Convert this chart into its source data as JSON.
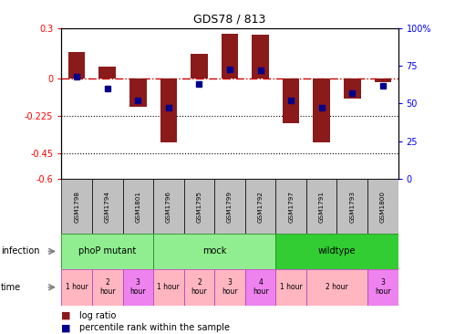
{
  "title": "GDS78 / 813",
  "samples": [
    "GSM1798",
    "GSM1794",
    "GSM1801",
    "GSM1796",
    "GSM1795",
    "GSM1799",
    "GSM1792",
    "GSM1797",
    "GSM1791",
    "GSM1793",
    "GSM1800"
  ],
  "log_ratio": [
    0.16,
    0.07,
    -0.17,
    -0.38,
    0.15,
    0.27,
    0.26,
    -0.27,
    -0.38,
    -0.12,
    -0.02
  ],
  "percentile": [
    68,
    60,
    52,
    47,
    63,
    73,
    72,
    52,
    47,
    57,
    62
  ],
  "ylim_left": [
    -0.6,
    0.3
  ],
  "ylim_right": [
    0,
    100
  ],
  "yticks_left": [
    -0.6,
    -0.45,
    -0.225,
    0,
    0.3
  ],
  "ytick_labels_left": [
    "-0.6",
    "-0.45",
    "-0.225",
    "0",
    "0.3"
  ],
  "yticks_right": [
    0,
    25,
    50,
    75,
    100
  ],
  "ytick_labels_right": [
    "0",
    "25",
    "50",
    "75",
    "100%"
  ],
  "hlines": [
    -0.225,
    -0.45
  ],
  "bar_color": "#8B1A1A",
  "dot_color": "#00008B",
  "dashed_line_color": "#CC0000",
  "infect_data": [
    {
      "label": "phoP mutant",
      "start": 0,
      "end": 3,
      "color": "#90EE90"
    },
    {
      "label": "mock",
      "start": 3,
      "end": 7,
      "color": "#90EE90"
    },
    {
      "label": "wildtype",
      "start": 7,
      "end": 11,
      "color": "#32CD32"
    }
  ],
  "time_groups": [
    {
      "label": "1 hour",
      "start": 0,
      "end": 1,
      "color": "#FFB6C1"
    },
    {
      "label": "2\nhour",
      "start": 1,
      "end": 2,
      "color": "#FFB6C1"
    },
    {
      "label": "3\nhour",
      "start": 2,
      "end": 3,
      "color": "#EE82EE"
    },
    {
      "label": "1 hour",
      "start": 3,
      "end": 4,
      "color": "#FFB6C1"
    },
    {
      "label": "2\nhour",
      "start": 4,
      "end": 5,
      "color": "#FFB6C1"
    },
    {
      "label": "3\nhour",
      "start": 5,
      "end": 6,
      "color": "#FFB6C1"
    },
    {
      "label": "4\nhour",
      "start": 6,
      "end": 7,
      "color": "#EE82EE"
    },
    {
      "label": "1 hour",
      "start": 7,
      "end": 8,
      "color": "#FFB6C1"
    },
    {
      "label": "2 hour",
      "start": 8,
      "end": 10,
      "color": "#FFB6C1"
    },
    {
      "label": "3\nhour",
      "start": 10,
      "end": 11,
      "color": "#EE82EE"
    }
  ],
  "sample_box_color": "#C0C0C0",
  "infect_border_color": "#228B22",
  "time_border_color": "#BB44BB",
  "fig_bg": "#FFFFFF"
}
